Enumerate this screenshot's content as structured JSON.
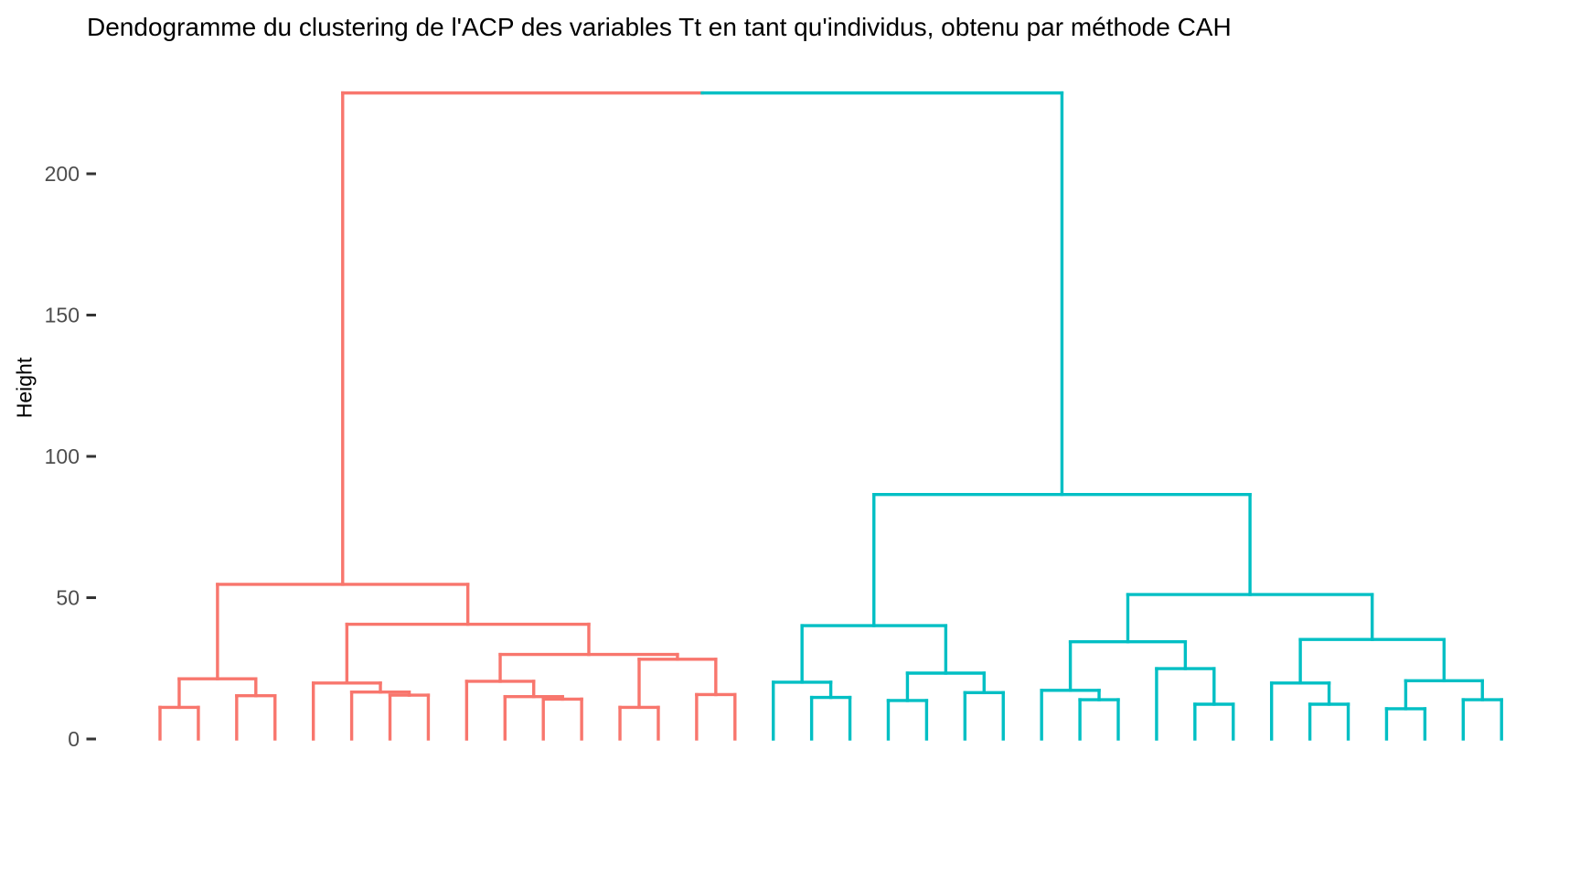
{
  "figure": {
    "background": "#FFFFFF"
  },
  "chart_data": {
    "type": "dendrogram",
    "title": "Dendogramme du clustering de l'ACP des variables Tt en tant qu'individus, obtenu par méthode CAH",
    "ylabel": "Height",
    "axis": {
      "yticks": [
        0,
        50,
        100,
        150,
        200
      ],
      "ylim": [
        0,
        235
      ],
      "tick_mark_color": "#333333",
      "tick_label_color": "#4D4D4D",
      "grid": false,
      "x_axis_visible": false
    },
    "n_leaves": 36,
    "root": {
      "height": 228.6,
      "color_split": "at_midpoint"
    },
    "clusters": [
      {
        "name": "cluster-1",
        "color": "#F8766D",
        "leaf_range": [
          1,
          16
        ],
        "tree": {
          "h": 54.7,
          "children": [
            {
              "h": 21.3,
              "children": [
                {
                  "h": 11.2,
                  "children": [
                    {
                      "leaf": 1
                    },
                    {
                      "leaf": 2
                    }
                  ]
                },
                {
                  "h": 15.3,
                  "children": [
                    {
                      "leaf": 3
                    },
                    {
                      "leaf": 4
                    }
                  ]
                }
              ]
            },
            {
              "h": 40.6,
              "children": [
                {
                  "h": 19.8,
                  "children": [
                    {
                      "leaf": 5
                    },
                    {
                      "h": 16.6,
                      "children": [
                        {
                          "leaf": 6
                        },
                        {
                          "h": 15.5,
                          "children": [
                            {
                              "leaf": 7
                            },
                            {
                              "leaf": 8
                            }
                          ]
                        }
                      ]
                    }
                  ]
                },
                {
                  "h": 29.9,
                  "children": [
                    {
                      "h": 20.4,
                      "children": [
                        {
                          "leaf": 9
                        },
                        {
                          "h": 15.0,
                          "children": [
                            {
                              "leaf": 10
                            },
                            {
                              "h": 14.1,
                              "children": [
                                {
                                  "leaf": 11
                                },
                                {
                                  "leaf": 12
                                }
                              ]
                            }
                          ]
                        }
                      ]
                    },
                    {
                      "h": 28.2,
                      "children": [
                        {
                          "h": 11.2,
                          "children": [
                            {
                              "leaf": 13
                            },
                            {
                              "leaf": 14
                            }
                          ]
                        },
                        {
                          "h": 15.7,
                          "children": [
                            {
                              "leaf": 15
                            },
                            {
                              "leaf": 16
                            }
                          ]
                        }
                      ]
                    }
                  ]
                }
              ]
            }
          ]
        }
      },
      {
        "name": "cluster-2",
        "color": "#00BFC4",
        "leaf_range": [
          17,
          36
        ],
        "tree": {
          "h": 86.5,
          "children": [
            {
              "h": 40.1,
              "children": [
                {
                  "h": 20.1,
                  "children": [
                    {
                      "leaf": 17
                    },
                    {
                      "h": 14.7,
                      "children": [
                        {
                          "leaf": 18
                        },
                        {
                          "leaf": 19
                        }
                      ]
                    }
                  ]
                },
                {
                  "h": 23.3,
                  "children": [
                    {
                      "h": 13.6,
                      "children": [
                        {
                          "leaf": 20
                        },
                        {
                          "leaf": 21
                        }
                      ]
                    },
                    {
                      "h": 16.4,
                      "children": [
                        {
                          "leaf": 22
                        },
                        {
                          "leaf": 23
                        }
                      ]
                    }
                  ]
                }
              ]
            },
            {
              "h": 51.1,
              "children": [
                {
                  "h": 34.4,
                  "children": [
                    {
                      "h": 17.2,
                      "children": [
                        {
                          "leaf": 24
                        },
                        {
                          "h": 13.9,
                          "children": [
                            {
                              "leaf": 25
                            },
                            {
                              "leaf": 26
                            }
                          ]
                        }
                      ]
                    },
                    {
                      "h": 24.9,
                      "children": [
                        {
                          "leaf": 27
                        },
                        {
                          "h": 12.3,
                          "children": [
                            {
                              "leaf": 28
                            },
                            {
                              "leaf": 29
                            }
                          ]
                        }
                      ]
                    }
                  ]
                },
                {
                  "h": 35.2,
                  "children": [
                    {
                      "h": 19.8,
                      "children": [
                        {
                          "leaf": 30
                        },
                        {
                          "h": 12.3,
                          "children": [
                            {
                              "leaf": 31
                            },
                            {
                              "leaf": 32
                            }
                          ]
                        }
                      ]
                    },
                    {
                      "h": 20.6,
                      "children": [
                        {
                          "h": 10.7,
                          "children": [
                            {
                              "leaf": 33
                            },
                            {
                              "leaf": 34
                            }
                          ]
                        },
                        {
                          "h": 13.9,
                          "children": [
                            {
                              "leaf": 35
                            },
                            {
                              "leaf": 36
                            }
                          ]
                        }
                      ]
                    }
                  ]
                }
              ]
            }
          ]
        }
      }
    ]
  }
}
